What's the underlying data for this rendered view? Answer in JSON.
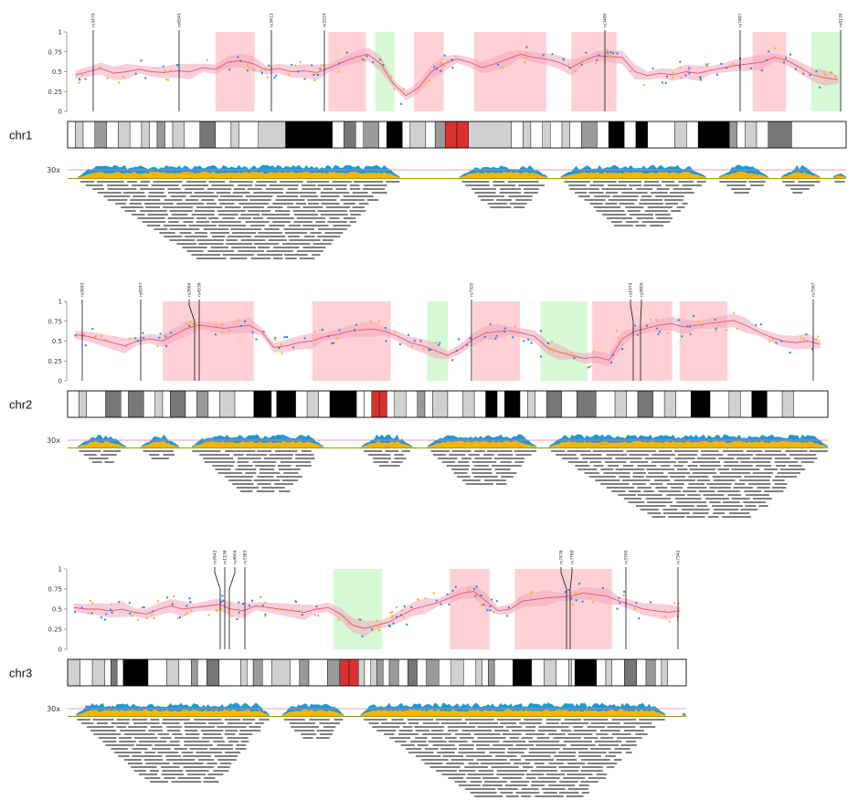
{
  "figure": {
    "y_ticks": [
      "1",
      "0.75",
      "0.5",
      "0.25",
      "0"
    ],
    "coverage_label": "30x",
    "colors": {
      "background": "#ffffff",
      "gain_region": "#ffb3b8",
      "loss_region": "#c6f7c3",
      "trend_line": "#e8546a",
      "trend_band": "#f4a6bd",
      "snp_blue": "#1e88e5",
      "snp_orange": "#f7b21a",
      "ideogram_black": "#000000",
      "ideogram_dark": "#777777",
      "ideogram_mid": "#9a9a9a",
      "ideogram_light": "#d0d0d0",
      "centromere": "#d9312f",
      "coverage_blue": "#1c9ad6",
      "coverage_yellow": "#f7b500",
      "coverage_line_pink": "#f07aa0",
      "coverage_line_olive": "#9a9a00",
      "reads": "#000000"
    }
  },
  "chromosomes": [
    {
      "name": "chr1",
      "snps": [
        "rs3479",
        "rs6545",
        "rs3411",
        "rs3229",
        "rs3480",
        "rs7497",
        "rs8139"
      ],
      "regions": [
        {
          "type": "gain",
          "start": 0.19,
          "end": 0.24
        },
        {
          "type": "gain",
          "start": 0.335,
          "end": 0.383
        },
        {
          "type": "loss",
          "start": 0.395,
          "end": 0.42
        },
        {
          "type": "gain",
          "start": 0.445,
          "end": 0.483
        },
        {
          "type": "gain",
          "start": 0.522,
          "end": 0.615
        },
        {
          "type": "gain",
          "start": 0.647,
          "end": 0.705
        },
        {
          "type": "gain",
          "start": 0.88,
          "end": 0.923
        },
        {
          "type": "loss",
          "start": 0.955,
          "end": 0.993
        }
      ],
      "trend": [
        0.46,
        0.5,
        0.54,
        0.48,
        0.5,
        0.53,
        0.5,
        0.49,
        0.51,
        0.5,
        0.55,
        0.53,
        0.62,
        0.64,
        0.6,
        0.52,
        0.54,
        0.5,
        0.51,
        0.49,
        0.55,
        0.62,
        0.68,
        0.72,
        0.6,
        0.35,
        0.2,
        0.3,
        0.5,
        0.6,
        0.66,
        0.62,
        0.55,
        0.6,
        0.66,
        0.72,
        0.68,
        0.66,
        0.62,
        0.55,
        0.64,
        0.7,
        0.69,
        0.68,
        0.5,
        0.45,
        0.48,
        0.46,
        0.5,
        0.48,
        0.52,
        0.55,
        0.58,
        0.6,
        0.62,
        0.68,
        0.64,
        0.55,
        0.46,
        0.42,
        0.4
      ]
    },
    {
      "name": "chr2",
      "snps": [
        "rs9693",
        "rs6597",
        "rs2664",
        "rs4536",
        "rs7320",
        "rs1974",
        "rs9805",
        "rs7567"
      ],
      "regions": [
        {
          "type": "gain",
          "start": 0.125,
          "end": 0.245
        },
        {
          "type": "gain",
          "start": 0.322,
          "end": 0.425
        },
        {
          "type": "loss",
          "start": 0.473,
          "end": 0.5
        },
        {
          "type": "gain",
          "start": 0.533,
          "end": 0.595
        },
        {
          "type": "loss",
          "start": 0.622,
          "end": 0.684
        },
        {
          "type": "gain",
          "start": 0.69,
          "end": 0.795
        },
        {
          "type": "gain",
          "start": 0.805,
          "end": 0.868
        }
      ],
      "trend": [
        0.58,
        0.56,
        0.52,
        0.48,
        0.44,
        0.5,
        0.53,
        0.5,
        0.58,
        0.66,
        0.7,
        0.68,
        0.66,
        0.68,
        0.7,
        0.62,
        0.42,
        0.44,
        0.48,
        0.5,
        0.55,
        0.58,
        0.62,
        0.64,
        0.65,
        0.62,
        0.56,
        0.48,
        0.44,
        0.38,
        0.32,
        0.4,
        0.52,
        0.6,
        0.62,
        0.63,
        0.6,
        0.56,
        0.42,
        0.36,
        0.32,
        0.28,
        0.3,
        0.26,
        0.52,
        0.62,
        0.66,
        0.7,
        0.72,
        0.68,
        0.7,
        0.72,
        0.74,
        0.76,
        0.7,
        0.62,
        0.55,
        0.5,
        0.48,
        0.5,
        0.46
      ]
    },
    {
      "name": "chr3",
      "snps": [
        "rs2642",
        "rs1136",
        "rs4604",
        "rs3363",
        "rs7476",
        "rs7769",
        "rs3350",
        "rs7342"
      ],
      "regions": [
        {
          "type": "loss",
          "start": 0.43,
          "end": 0.508
        },
        {
          "type": "gain",
          "start": 0.618,
          "end": 0.682
        },
        {
          "type": "gain",
          "start": 0.723,
          "end": 0.88
        }
      ],
      "trend": [
        0.52,
        0.5,
        0.5,
        0.48,
        0.5,
        0.46,
        0.44,
        0.5,
        0.54,
        0.5,
        0.52,
        0.54,
        0.56,
        0.5,
        0.48,
        0.54,
        0.52,
        0.5,
        0.48,
        0.46,
        0.5,
        0.52,
        0.44,
        0.3,
        0.26,
        0.3,
        0.34,
        0.42,
        0.5,
        0.54,
        0.58,
        0.64,
        0.7,
        0.72,
        0.6,
        0.48,
        0.5,
        0.6,
        0.62,
        0.64,
        0.65,
        0.66,
        0.7,
        0.68,
        0.66,
        0.6,
        0.55,
        0.5,
        0.48,
        0.46,
        0.48
      ]
    }
  ]
}
